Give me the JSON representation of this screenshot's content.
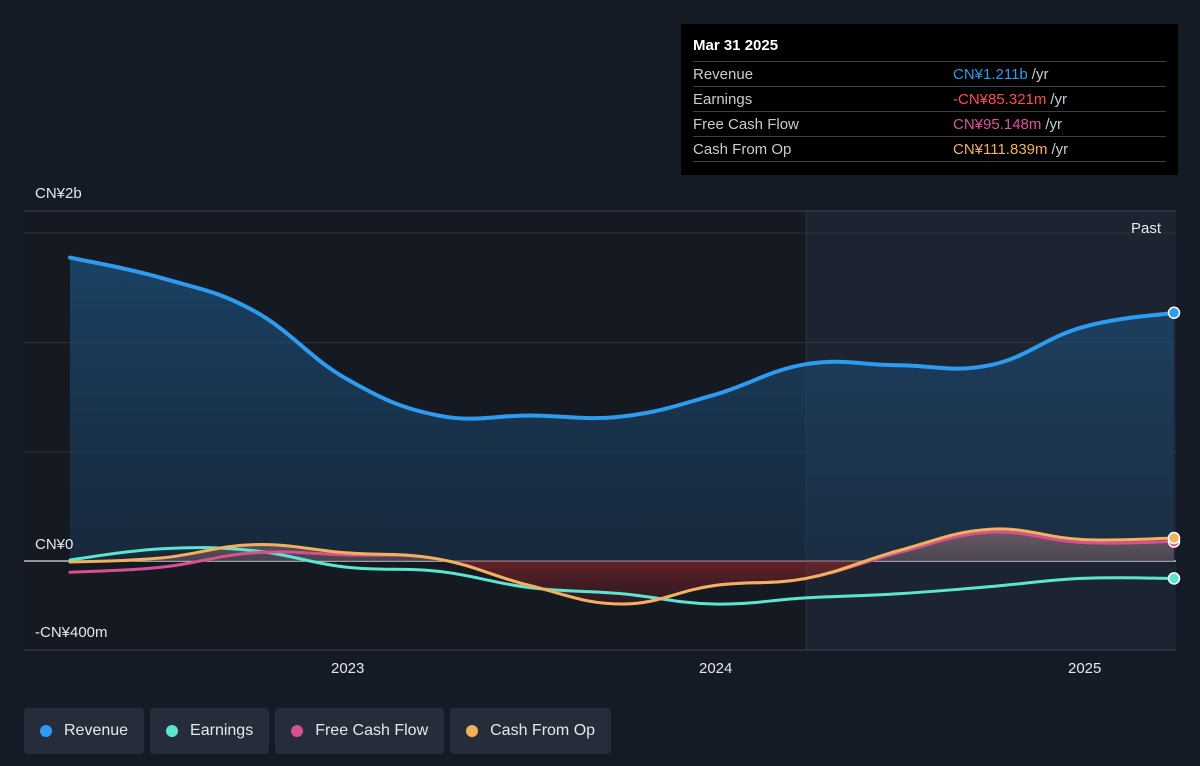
{
  "tooltip": {
    "date": "Mar 31 2025",
    "rows": [
      {
        "label": "Revenue",
        "value": "CN¥1.211b",
        "unit": "/yr",
        "color": "#2d9cf0"
      },
      {
        "label": "Earnings",
        "value": "-CN¥85.321m",
        "unit": "/yr",
        "color": "#ff4d4f"
      },
      {
        "label": "Free Cash Flow",
        "value": "CN¥95.148m",
        "unit": "/yr",
        "color": "#e0559a"
      },
      {
        "label": "Cash From Op",
        "value": "CN¥111.839m",
        "unit": "/yr",
        "color": "#f2b15c"
      }
    ]
  },
  "legend": [
    {
      "label": "Revenue",
      "color": "#2d9cf0"
    },
    {
      "label": "Earnings",
      "color": "#5ce6d2"
    },
    {
      "label": "Free Cash Flow",
      "color": "#d6518f"
    },
    {
      "label": "Cash From Op",
      "color": "#f2b15c"
    }
  ],
  "chart_data": {
    "type": "line",
    "y_labels": {
      "top": "CN¥2b",
      "zero": "CN¥0",
      "bottom": "-CN¥400m"
    },
    "ylim": [
      -400,
      1600
    ],
    "xlim": [
      2022.25,
      2025.25
    ],
    "x_ticks": [
      {
        "value": 2023,
        "label": "2023"
      },
      {
        "value": 2024,
        "label": "2024"
      },
      {
        "value": 2025,
        "label": "2025"
      }
    ],
    "past_label": "Past",
    "past_start": 2024.25,
    "series": [
      {
        "name": "Revenue",
        "color": "#2d9cf0",
        "points": [
          [
            2022.25,
            1480
          ],
          [
            2022.5,
            1380
          ],
          [
            2022.75,
            1220
          ],
          [
            2023.0,
            890
          ],
          [
            2023.25,
            710
          ],
          [
            2023.5,
            710
          ],
          [
            2023.75,
            705
          ],
          [
            2024.0,
            810
          ],
          [
            2024.25,
            960
          ],
          [
            2024.5,
            955
          ],
          [
            2024.75,
            955
          ],
          [
            2025.0,
            1140
          ],
          [
            2025.25,
            1211
          ]
        ]
      },
      {
        "name": "Earnings",
        "color": "#5ce6d2",
        "points": [
          [
            2022.25,
            5
          ],
          [
            2022.5,
            60
          ],
          [
            2022.75,
            50
          ],
          [
            2023.0,
            -30
          ],
          [
            2023.25,
            -50
          ],
          [
            2023.5,
            -130
          ],
          [
            2023.75,
            -160
          ],
          [
            2024.0,
            -210
          ],
          [
            2024.25,
            -180
          ],
          [
            2024.5,
            -160
          ],
          [
            2024.75,
            -125
          ],
          [
            2025.0,
            -85
          ],
          [
            2025.25,
            -85
          ]
        ]
      },
      {
        "name": "Free Cash Flow",
        "color": "#d6518f",
        "points": [
          [
            2022.25,
            -55
          ],
          [
            2022.5,
            -30
          ],
          [
            2022.75,
            40
          ],
          [
            2023.0,
            30
          ],
          [
            2023.25,
            10
          ],
          [
            2023.5,
            -120
          ],
          [
            2023.75,
            -210
          ],
          [
            2024.0,
            -120
          ],
          [
            2024.25,
            -85
          ],
          [
            2024.5,
            40
          ],
          [
            2024.75,
            140
          ],
          [
            2025.0,
            90
          ],
          [
            2025.25,
            95
          ]
        ]
      },
      {
        "name": "Cash From Op",
        "color": "#f2b15c",
        "points": [
          [
            2022.25,
            -5
          ],
          [
            2022.5,
            15
          ],
          [
            2022.75,
            80
          ],
          [
            2023.0,
            40
          ],
          [
            2023.25,
            10
          ],
          [
            2023.5,
            -120
          ],
          [
            2023.75,
            -210
          ],
          [
            2024.0,
            -120
          ],
          [
            2024.25,
            -85
          ],
          [
            2024.5,
            50
          ],
          [
            2024.75,
            155
          ],
          [
            2025.0,
            105
          ],
          [
            2025.25,
            112
          ]
        ]
      }
    ]
  }
}
